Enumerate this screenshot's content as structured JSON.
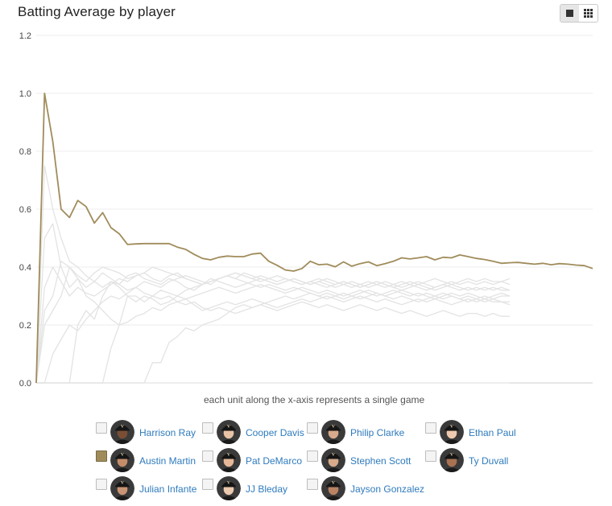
{
  "title": "Batting Average by player",
  "view_toggle": {
    "options": [
      "single-chart-icon",
      "grid-view-icon"
    ],
    "active": 0
  },
  "chart_data": {
    "type": "line",
    "title": "Batting Average by player",
    "xlabel": "each unit along the x-axis represents a single game",
    "ylabel": "",
    "ylim": [
      0,
      1.2
    ],
    "yticks": [
      "0.0",
      "0.2",
      "0.4",
      "0.6",
      "0.8",
      "1.0",
      "1.2"
    ],
    "xlim": [
      0,
      57
    ],
    "grid": true,
    "highlight_color": "#a08c5b",
    "muted_color": "#e3e3e3",
    "series": [
      {
        "name": "Austin Martin",
        "highlighted": true,
        "values": [
          0.0,
          1.0,
          0.833,
          0.6,
          0.571,
          0.63,
          0.609,
          0.552,
          0.588,
          0.536,
          0.515,
          0.478,
          0.48,
          0.481,
          0.481,
          0.481,
          0.481,
          0.469,
          0.461,
          0.444,
          0.43,
          0.425,
          0.434,
          0.438,
          0.436,
          0.436,
          0.445,
          0.448,
          0.42,
          0.406,
          0.39,
          0.386,
          0.395,
          0.42,
          0.408,
          0.41,
          0.401,
          0.418,
          0.403,
          0.412,
          0.418,
          0.405,
          0.412,
          0.42,
          0.432,
          0.428,
          0.432,
          0.436,
          0.425,
          0.434,
          0.432,
          0.442,
          0.436,
          0.43,
          0.426,
          0.42,
          0.413,
          0.415,
          0.416,
          0.413,
          0.41,
          0.413,
          0.408,
          0.412,
          0.41,
          0.407,
          0.405,
          0.395
        ]
      },
      {
        "name": "Harrison Ray",
        "highlighted": false,
        "values": [
          0.0,
          0.2,
          0.25,
          0.3,
          0.4,
          0.36,
          0.33,
          0.35,
          0.38,
          0.36,
          0.34,
          0.37,
          0.38,
          0.36,
          0.35,
          0.34,
          0.36,
          0.35,
          0.33,
          0.32,
          0.34,
          0.35,
          0.36,
          0.37,
          0.36,
          0.35,
          0.34,
          0.33,
          0.34,
          0.33,
          0.32,
          0.33,
          0.32,
          0.31,
          0.3,
          0.31,
          0.3,
          0.29,
          0.3,
          0.29,
          0.3,
          0.31,
          0.3,
          0.29,
          0.3,
          0.29,
          0.28,
          0.29,
          0.3,
          0.29,
          0.3,
          0.29,
          0.28,
          0.29,
          0.28,
          0.29,
          0.28,
          0.27
        ]
      },
      {
        "name": "Cooper Davis",
        "highlighted": false,
        "values": [
          0.0,
          0.5,
          0.55,
          0.4,
          0.33,
          0.36,
          0.3,
          0.28,
          0.25,
          0.22,
          0.2,
          0.21,
          0.23,
          0.24,
          0.26,
          0.25,
          0.27,
          0.28,
          0.29,
          0.3,
          0.31,
          0.32,
          0.33,
          0.32,
          0.31,
          0.32,
          0.33,
          0.34,
          0.33,
          0.32,
          0.31,
          0.32,
          0.33,
          0.32,
          0.31,
          0.32,
          0.31,
          0.3,
          0.31,
          0.32,
          0.31,
          0.3,
          0.31,
          0.32,
          0.31,
          0.3,
          0.31,
          0.3,
          0.29,
          0.3,
          0.31,
          0.3,
          0.31,
          0.3,
          0.29,
          0.3,
          0.31,
          0.3
        ]
      },
      {
        "name": "Philip Clarke",
        "highlighted": false,
        "values": [
          0.0,
          0.0,
          0.1,
          0.15,
          0.2,
          0.18,
          0.22,
          0.25,
          0.28,
          0.3,
          0.29,
          0.31,
          0.33,
          0.35,
          0.34,
          0.33,
          0.35,
          0.36,
          0.37,
          0.36,
          0.35,
          0.34,
          0.36,
          0.37,
          0.36,
          0.38,
          0.37,
          0.36,
          0.35,
          0.34,
          0.35,
          0.36,
          0.35,
          0.34,
          0.35,
          0.34,
          0.33,
          0.34,
          0.35,
          0.34,
          0.33,
          0.34,
          0.35,
          0.34,
          0.33,
          0.34,
          0.33,
          0.32,
          0.33,
          0.34,
          0.33,
          0.32,
          0.33,
          0.32,
          0.33,
          0.32,
          0.33,
          0.32
        ]
      },
      {
        "name": "Ethan Paul",
        "highlighted": false,
        "values": [
          0.0,
          0.75,
          0.6,
          0.5,
          0.42,
          0.4,
          0.37,
          0.35,
          0.33,
          0.35,
          0.34,
          0.32,
          0.33,
          0.31,
          0.3,
          0.29,
          0.3,
          0.28,
          0.27,
          0.28,
          0.26,
          0.25,
          0.26,
          0.25,
          0.24,
          0.25,
          0.26,
          0.27,
          0.26,
          0.25,
          0.26,
          0.27,
          0.28,
          0.27,
          0.26,
          0.27,
          0.26,
          0.25,
          0.26,
          0.27,
          0.26,
          0.25,
          0.26,
          0.25,
          0.24,
          0.25,
          0.24,
          0.23,
          0.24,
          0.25,
          0.24,
          0.23,
          0.24,
          0.24,
          0.23,
          0.24,
          0.23,
          0.23
        ]
      },
      {
        "name": "Pat DeMarco",
        "highlighted": false,
        "values": [
          0.0,
          0.33,
          0.4,
          0.35,
          0.3,
          0.33,
          0.31,
          0.3,
          0.32,
          0.34,
          0.36,
          0.35,
          0.37,
          0.38,
          0.36,
          0.35,
          0.37,
          0.38,
          0.36,
          0.35,
          0.34,
          0.36,
          0.35,
          0.34,
          0.33,
          0.34,
          0.35,
          0.36,
          0.35,
          0.34,
          0.35,
          0.36,
          0.35,
          0.34,
          0.35,
          0.36,
          0.35,
          0.34,
          0.33,
          0.34,
          0.35,
          0.34,
          0.33,
          0.34,
          0.35,
          0.34,
          0.35,
          0.34,
          0.33,
          0.34,
          0.35,
          0.34,
          0.35,
          0.34,
          0.35,
          0.34,
          0.35,
          0.34
        ]
      },
      {
        "name": "Stephen Scott",
        "highlighted": false,
        "values": [
          0.0,
          0.0,
          0.0,
          0.0,
          0.0,
          0.0,
          0.0,
          0.0,
          0.0,
          0.12,
          0.2,
          0.3,
          0.3,
          0.28,
          0.3,
          0.32,
          0.31,
          0.3,
          0.32,
          0.33,
          0.34,
          0.35,
          0.36,
          0.37,
          0.38,
          0.37,
          0.36,
          0.37,
          0.36,
          0.35,
          0.36,
          0.35,
          0.34,
          0.35,
          0.34,
          0.33,
          0.34,
          0.35,
          0.34,
          0.33,
          0.34,
          0.35,
          0.34,
          0.33,
          0.32,
          0.33,
          0.34,
          0.33,
          0.32,
          0.33,
          0.34,
          0.33,
          0.32,
          0.33,
          0.32,
          0.33,
          0.32,
          0.32
        ]
      },
      {
        "name": "Ty Duvall",
        "highlighted": false,
        "values": [
          0.0,
          0.0,
          0.0,
          0.0,
          0.0,
          0.0,
          0.0,
          0.0,
          0.0,
          0.0,
          0.0,
          0.0,
          0.0,
          0.0,
          0.0,
          0.0,
          0.0,
          0.0,
          0.0,
          0.0,
          0.0,
          0.0,
          0.0,
          0.0,
          0.0,
          0.0,
          0.0,
          0.0,
          0.0,
          0.0,
          0.0,
          0.0,
          0.0,
          0.0,
          0.0,
          0.0,
          0.0,
          0.0,
          0.0,
          0.0,
          0.0,
          0.0,
          0.0,
          0.0,
          0.0,
          0.0,
          0.0,
          0.0,
          0.0,
          0.0,
          0.0,
          0.0,
          0.0,
          0.0,
          0.0,
          0.0,
          0.0,
          0.0
        ]
      },
      {
        "name": "Julian Infante",
        "highlighted": false,
        "values": [
          0.0,
          0.0,
          0.0,
          0.0,
          0.0,
          0.0,
          0.0,
          0.0,
          0.0,
          0.0,
          0.0,
          0.0,
          0.0,
          0.0,
          0.07,
          0.07,
          0.14,
          0.16,
          0.19,
          0.18,
          0.2,
          0.21,
          0.22,
          0.24,
          0.26,
          0.27,
          0.26,
          0.27,
          0.28,
          0.29,
          0.3,
          0.29,
          0.3,
          0.31,
          0.3,
          0.29,
          0.3,
          0.31,
          0.3,
          0.31,
          0.32,
          0.31,
          0.3,
          0.31,
          0.32,
          0.31,
          0.3,
          0.31,
          0.3,
          0.31,
          0.3,
          0.29,
          0.3,
          0.29,
          0.3,
          0.29,
          0.3,
          0.3
        ]
      },
      {
        "name": "JJ Bleday",
        "highlighted": false,
        "values": [
          0.0,
          0.25,
          0.3,
          0.42,
          0.4,
          0.37,
          0.35,
          0.38,
          0.4,
          0.39,
          0.38,
          0.36,
          0.37,
          0.38,
          0.4,
          0.39,
          0.38,
          0.37,
          0.36,
          0.35,
          0.34,
          0.35,
          0.36,
          0.37,
          0.38,
          0.37,
          0.36,
          0.35,
          0.36,
          0.37,
          0.36,
          0.35,
          0.34,
          0.35,
          0.36,
          0.35,
          0.34,
          0.35,
          0.34,
          0.33,
          0.34,
          0.35,
          0.34,
          0.33,
          0.34,
          0.35,
          0.34,
          0.35,
          0.36,
          0.35,
          0.34,
          0.35,
          0.36,
          0.35,
          0.36,
          0.35,
          0.35,
          0.36
        ]
      },
      {
        "name": "Jayson Gonzalez",
        "highlighted": false,
        "values": [
          0.0,
          0.0,
          0.0,
          0.0,
          0.0,
          0.2,
          0.25,
          0.22,
          0.3,
          0.35,
          0.33,
          0.3,
          0.28,
          0.3,
          0.29,
          0.27,
          0.28,
          0.3,
          0.29,
          0.27,
          0.25,
          0.26,
          0.27,
          0.28,
          0.27,
          0.28,
          0.29,
          0.28,
          0.27,
          0.26,
          0.27,
          0.28,
          0.29,
          0.28,
          0.29,
          0.3,
          0.29,
          0.28,
          0.29,
          0.3,
          0.29,
          0.28,
          0.29,
          0.28,
          0.27,
          0.28,
          0.29,
          0.28,
          0.29,
          0.28,
          0.27,
          0.28,
          0.29,
          0.28,
          0.29,
          0.28,
          0.28,
          0.28
        ]
      }
    ]
  },
  "legend": [
    {
      "name": "Harrison Ray",
      "checked": false,
      "skin": "#7a4e35"
    },
    {
      "name": "Cooper Davis",
      "checked": false,
      "skin": "#e9c3a6"
    },
    {
      "name": "Philip Clarke",
      "checked": false,
      "skin": "#d9a98c"
    },
    {
      "name": "Ethan Paul",
      "checked": false,
      "skin": "#efc9ae"
    },
    {
      "name": "Austin Martin",
      "checked": true,
      "skin": "#c48d69"
    },
    {
      "name": "Pat DeMarco",
      "checked": false,
      "skin": "#e6b899"
    },
    {
      "name": "Stephen Scott",
      "checked": false,
      "skin": "#d8aa8a"
    },
    {
      "name": "Ty Duvall",
      "checked": false,
      "skin": "#a87251"
    },
    {
      "name": "Julian Infante",
      "checked": false,
      "skin": "#c99473"
    },
    {
      "name": "JJ Bleday",
      "checked": false,
      "skin": "#eccaaf"
    },
    {
      "name": "Jayson Gonzalez",
      "checked": false,
      "skin": "#b98263"
    }
  ]
}
